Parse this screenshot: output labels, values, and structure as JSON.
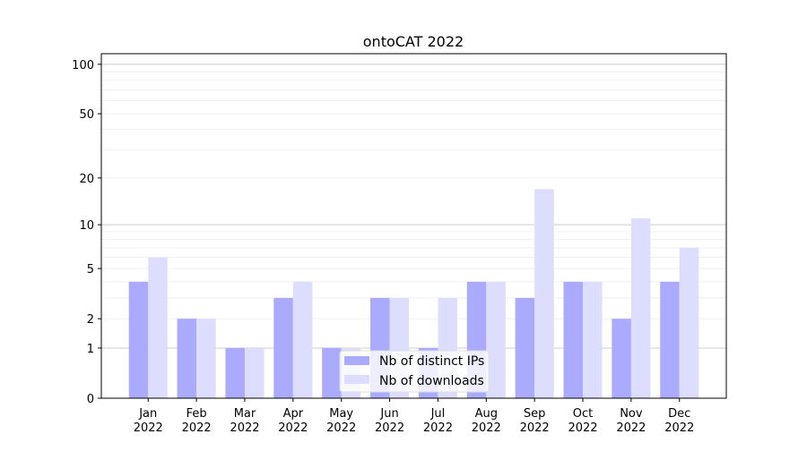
{
  "chart_data": {
    "type": "bar",
    "title": "ontoCAT 2022",
    "xlabel": "",
    "ylabel": "",
    "categories": [
      "Jan\n2022",
      "Feb\n2022",
      "Mar\n2022",
      "Apr\n2022",
      "May\n2022",
      "Jun\n2022",
      "Jul\n2022",
      "Aug\n2022",
      "Sep\n2022",
      "Oct\n2022",
      "Nov\n2022",
      "Dec\n2022"
    ],
    "series": [
      {
        "name": "Nb of distinct IPs",
        "color": "#aaaaff",
        "values": [
          4,
          2,
          1,
          3,
          1,
          3,
          1,
          4,
          3,
          4,
          2,
          4
        ]
      },
      {
        "name": "Nb of downloads",
        "color": "#ddddff",
        "values": [
          6,
          2,
          1,
          4,
          1,
          3,
          3,
          4,
          17,
          4,
          11,
          7
        ]
      }
    ],
    "yscale": "log(1+y)",
    "yticks": [
      0,
      1,
      2,
      5,
      10,
      20,
      50,
      100
    ],
    "ylim": [
      0,
      116
    ],
    "grid": true,
    "legend": "lower-center"
  }
}
